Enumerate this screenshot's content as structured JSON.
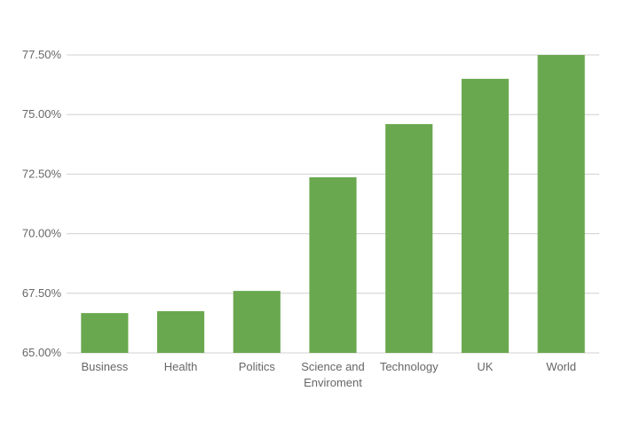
{
  "chart_data": {
    "type": "bar",
    "categories": [
      "Business",
      "Health",
      "Politics",
      "Science and Enviroment",
      "Technology",
      "UK",
      "World"
    ],
    "values": [
      66.67,
      66.75,
      67.6,
      72.37,
      74.6,
      76.5,
      77.5
    ],
    "color": "#6aa84f",
    "ylim": [
      65,
      77.5
    ],
    "yticks": [
      {
        "value": 65,
        "label": "65.00%"
      },
      {
        "value": 67.5,
        "label": "67.50%"
      },
      {
        "value": 70,
        "label": "70.00%"
      },
      {
        "value": 72.5,
        "label": "72.50%"
      },
      {
        "value": 75,
        "label": "75.00%"
      },
      {
        "value": 77.5,
        "label": "77.50%"
      }
    ],
    "grid": true
  }
}
